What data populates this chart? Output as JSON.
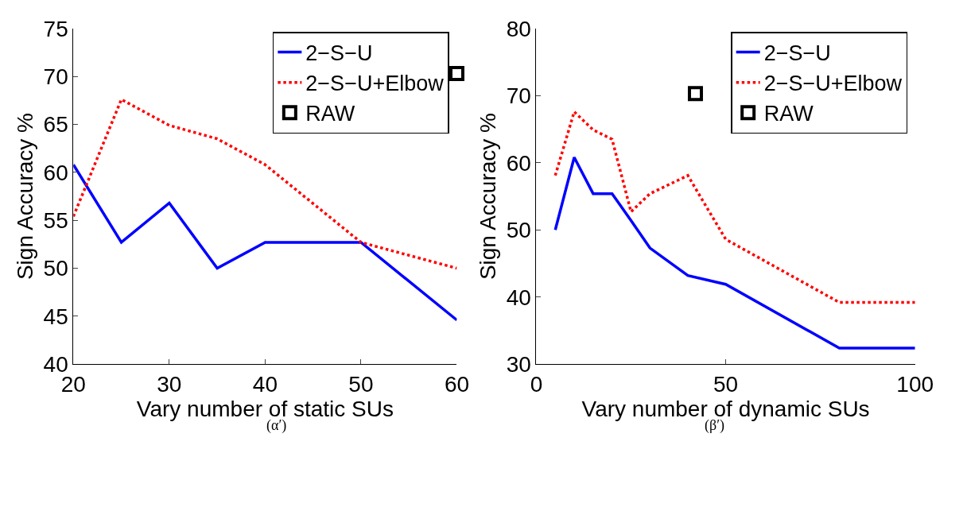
{
  "chart_data": [
    {
      "type": "line",
      "xlabel": "Vary number of static SUs",
      "ylabel": "Sign Accuracy %",
      "xlim": [
        20,
        60
      ],
      "xticks": [
        20,
        30,
        40,
        50,
        60
      ],
      "ylim": [
        40,
        75
      ],
      "yticks": [
        40,
        45,
        50,
        55,
        60,
        65,
        70,
        75
      ],
      "grid": false,
      "legend": "top right",
      "annotations": [
        "(α′)"
      ],
      "series": [
        {
          "name": "2−S−U",
          "color": "#0000ff",
          "x": [
            20,
            25,
            30,
            35,
            40,
            50,
            60
          ],
          "values": [
            60.8,
            52.7,
            56.8,
            50,
            52.7,
            52.7,
            44.6
          ],
          "line_style": "solid",
          "marker": "none"
        },
        {
          "name": "2−S−U+Elbow",
          "color": "#ff0000",
          "x": [
            20,
            25,
            30,
            35,
            40,
            50,
            60
          ],
          "values": [
            55.4,
            67.6,
            64.9,
            63.5,
            60.8,
            52.7,
            50
          ],
          "line_style": "dotted",
          "marker": "none"
        },
        {
          "name": "RAW",
          "type": "scatter",
          "color": "#000000",
          "x": [
            60
          ],
          "values": [
            70.3
          ],
          "marker": "square"
        }
      ]
    },
    {
      "type": "line",
      "xlabel": "Vary number of dynamic SUs",
      "ylabel": "Sign Accuracy %",
      "xlim": [
        0,
        100
      ],
      "xticks": [
        0,
        50,
        100
      ],
      "ylim": [
        30,
        80
      ],
      "yticks": [
        30,
        40,
        50,
        60,
        70,
        80
      ],
      "grid": false,
      "legend": "top right",
      "annotations": [
        "(β′)"
      ],
      "series": [
        {
          "name": "2−S−U",
          "color": "#0000ff",
          "x": [
            5,
            10,
            15,
            20,
            25,
            30,
            40,
            50,
            80,
            100
          ],
          "values": [
            50,
            60.8,
            55.4,
            55.4,
            51.4,
            47.3,
            43.2,
            41.9,
            32.4,
            32.4
          ],
          "line_style": "solid",
          "marker": "none"
        },
        {
          "name": "2−S−U+Elbow",
          "color": "#ff0000",
          "x": [
            5,
            10,
            15,
            20,
            25,
            30,
            40,
            50,
            80,
            100
          ],
          "values": [
            58.1,
            67.6,
            64.9,
            63.5,
            52.7,
            55.4,
            58.1,
            48.6,
            39.2,
            39.2
          ],
          "line_style": "dotted",
          "marker": "none"
        },
        {
          "name": "RAW",
          "type": "scatter",
          "color": "#000000",
          "x": [
            42
          ],
          "values": [
            70.3
          ],
          "marker": "square"
        }
      ]
    }
  ]
}
